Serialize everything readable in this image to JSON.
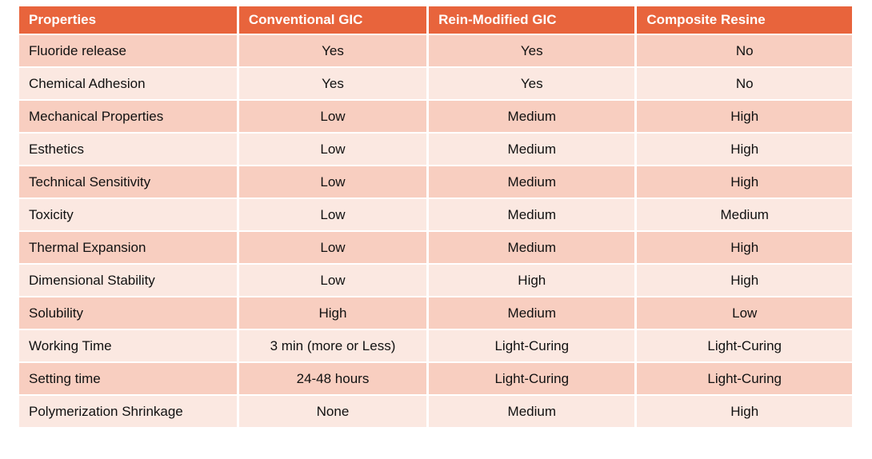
{
  "colors": {
    "page_bg": "#FFFFFF",
    "header_bg": "#E8643C",
    "header_text": "#FFFFFF",
    "row_odd_bg": "#F8CEC0",
    "row_even_bg": "#FBE8E1",
    "body_text": "#111111"
  },
  "chart_data": {
    "type": "table",
    "columns": [
      "Properties",
      "Conventional GIC",
      "Rein-Modified GIC",
      "Composite Resine"
    ],
    "rows": [
      [
        "Fluoride release",
        "Yes",
        "Yes",
        "No"
      ],
      [
        "Chemical Adhesion",
        "Yes",
        "Yes",
        "No"
      ],
      [
        "Mechanical Properties",
        "Low",
        "Medium",
        "High"
      ],
      [
        "Esthetics",
        "Low",
        "Medium",
        "High"
      ],
      [
        "Technical Sensitivity",
        "Low",
        "Medium",
        "High"
      ],
      [
        "Toxicity",
        "Low",
        "Medium",
        "Medium"
      ],
      [
        "Thermal Expansion",
        "Low",
        "Medium",
        "High"
      ],
      [
        "Dimensional Stability",
        "Low",
        "High",
        "High"
      ],
      [
        "Solubility",
        "High",
        "Medium",
        "Low"
      ],
      [
        "Working Time",
        "3 min (more or Less)",
        "Light-Curing",
        "Light-Curing"
      ],
      [
        "Setting time",
        "24-48 hours",
        "Light-Curing",
        "Light-Curing"
      ],
      [
        "Polymerization Shrinkage",
        "None",
        "Medium",
        "High"
      ]
    ]
  }
}
